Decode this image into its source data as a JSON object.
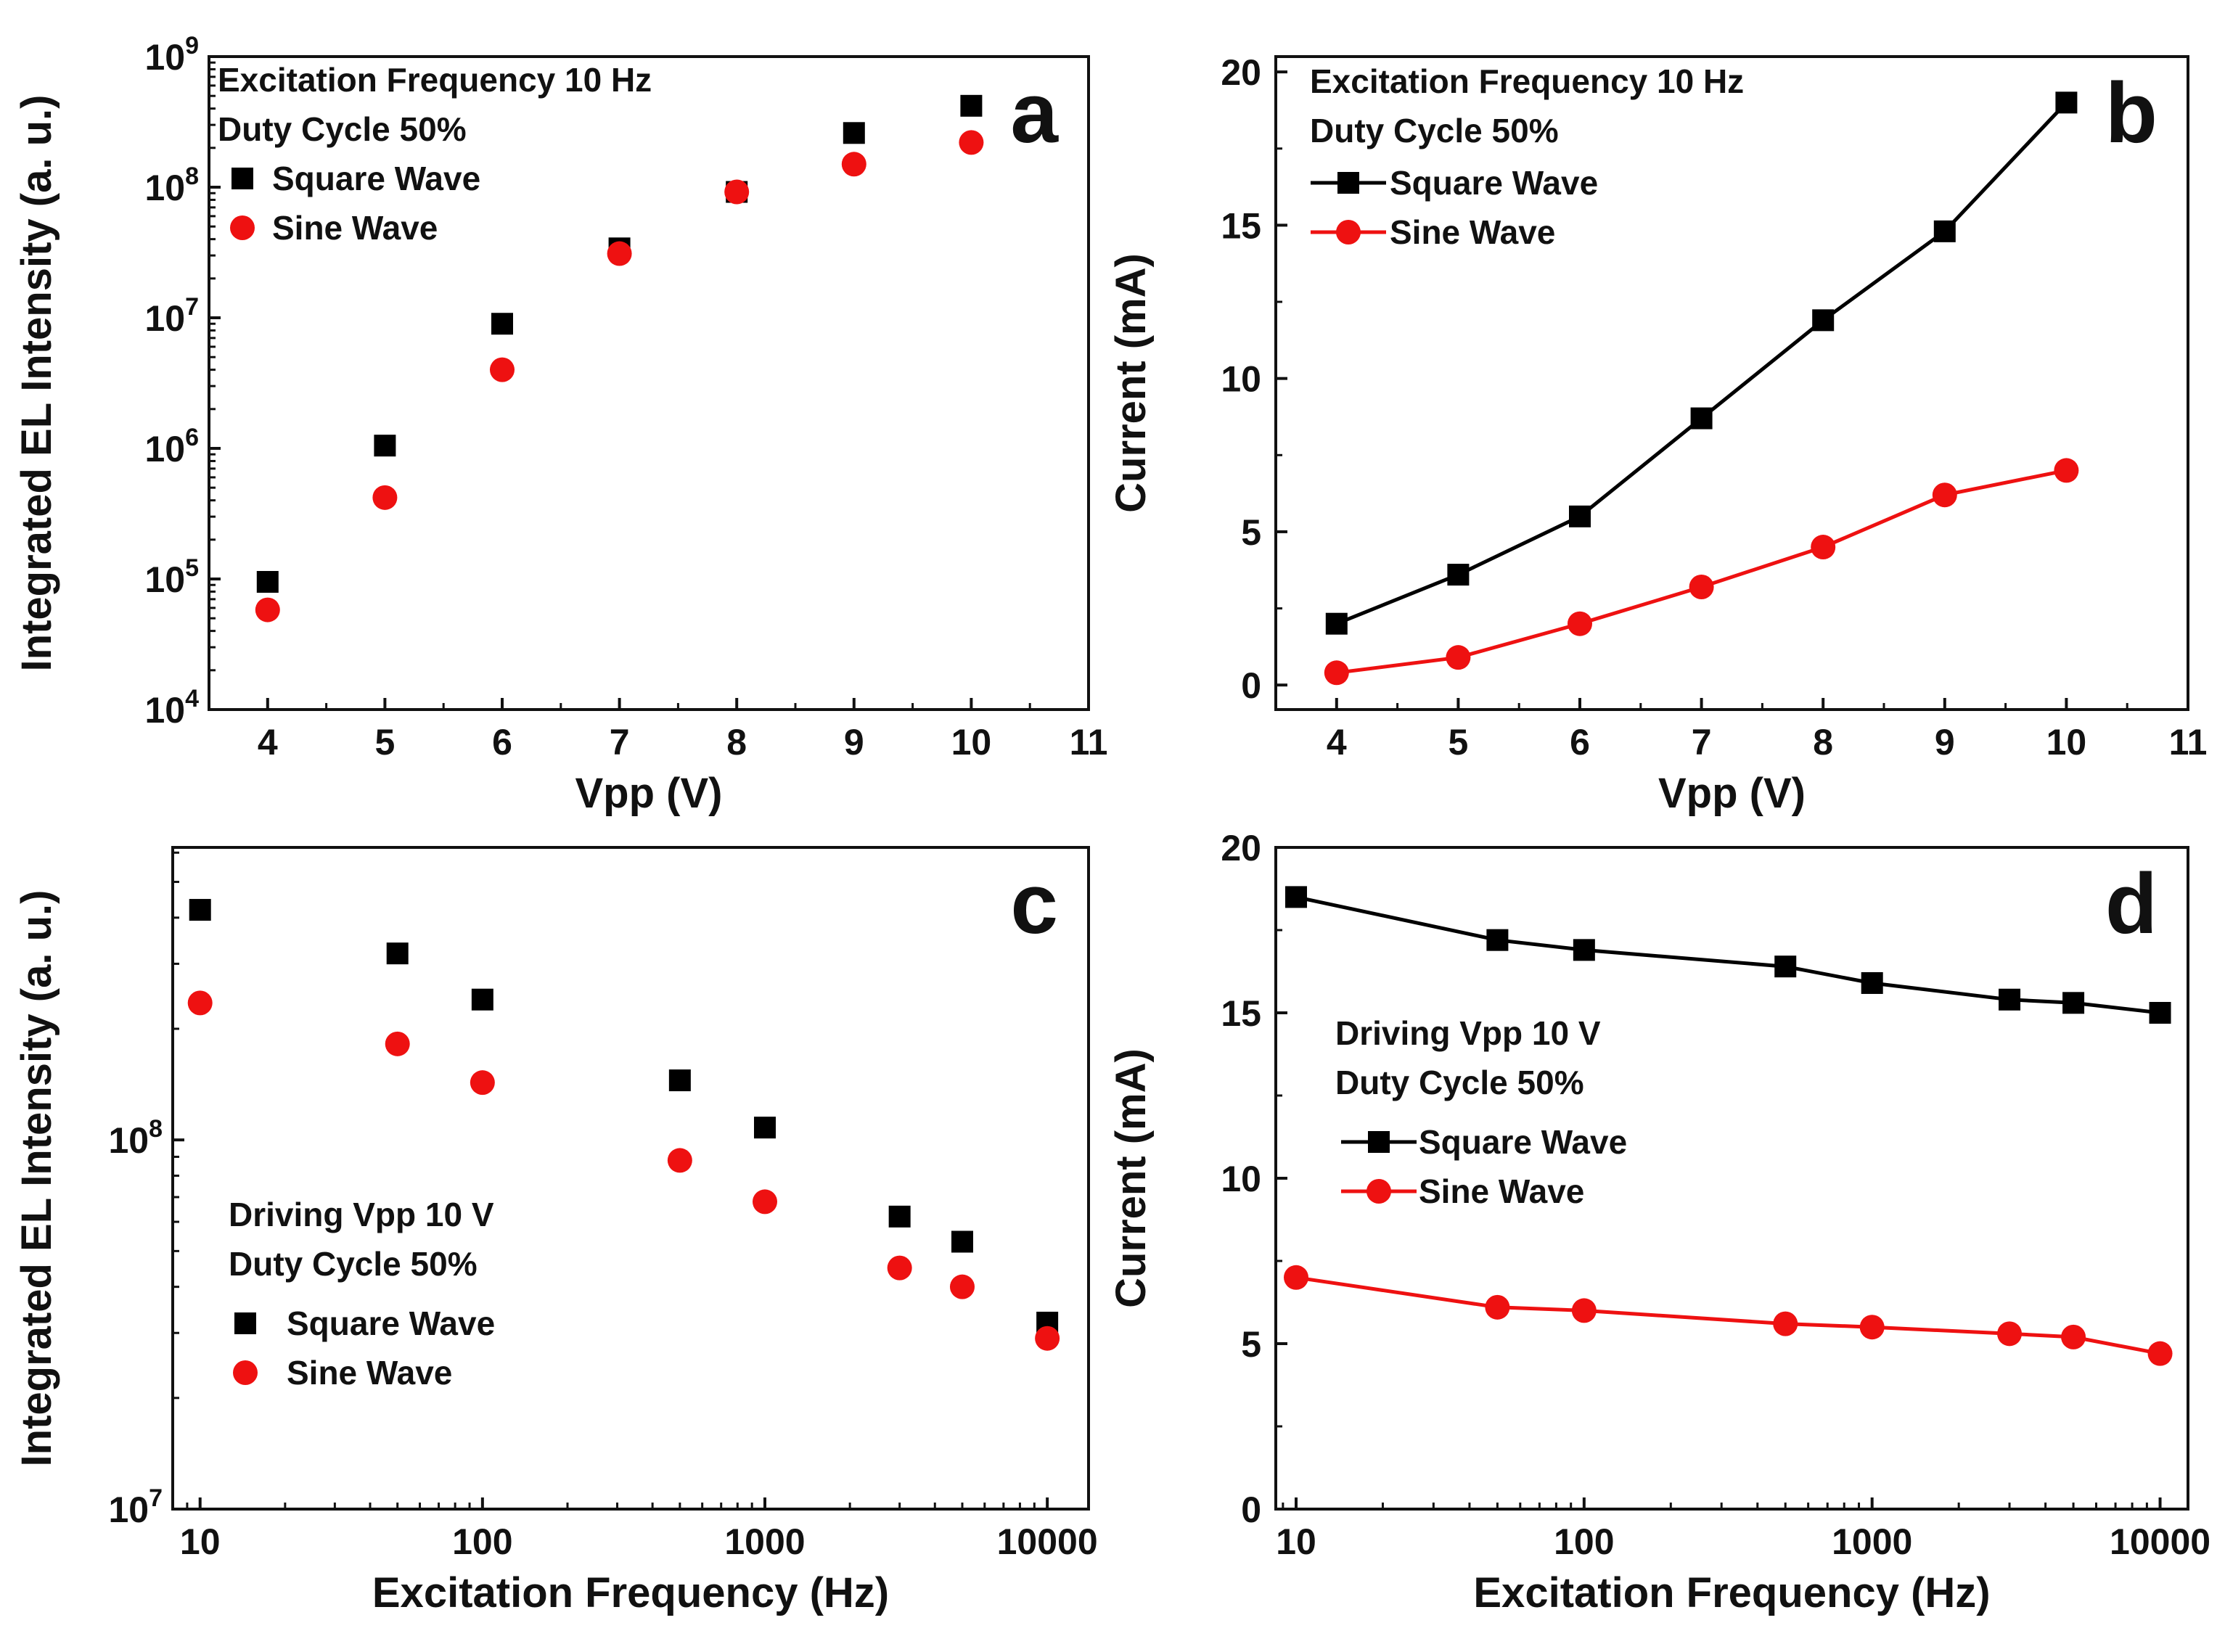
{
  "colors": {
    "square": "#000000",
    "sine": "#ee1111",
    "axis": "#111111"
  },
  "chart_data": [
    {
      "id": "a",
      "type": "scatter",
      "panel_label": "a",
      "title": "",
      "xlabel": "Vpp (V)",
      "ylabel": "Integrated EL Intensity (a. u.)",
      "xscale": "linear",
      "yscale": "log",
      "xlim": [
        3.5,
        11
      ],
      "ylim": [
        10000,
        1000000000
      ],
      "xticks": [
        4,
        5,
        6,
        7,
        8,
        9,
        10,
        11
      ],
      "xtick_labels": [
        "4",
        "5",
        "6",
        "7",
        "8",
        "9",
        "10",
        "11"
      ],
      "yticks": [
        10000,
        100000,
        1000000,
        10000000,
        100000000,
        1000000000
      ],
      "ytick_labels": [
        [
          "10",
          "4"
        ],
        [
          "10",
          "5"
        ],
        [
          "10",
          "6"
        ],
        [
          "10",
          "7"
        ],
        [
          "10",
          "8"
        ],
        [
          "10",
          "9"
        ]
      ],
      "annotation_lines": [
        "Excitation Frequency 10 Hz",
        "Duty Cycle 50%"
      ],
      "legend_position": "top-left",
      "series": [
        {
          "name": "Square Wave",
          "marker": "square",
          "connected": false,
          "x": [
            4,
            5,
            6,
            7,
            8,
            9,
            10
          ],
          "y": [
            95000,
            1050000,
            9000000,
            34000000,
            92000000,
            260000000,
            420000000
          ]
        },
        {
          "name": "Sine Wave",
          "marker": "circle",
          "connected": false,
          "x": [
            4,
            5,
            6,
            7,
            8,
            9,
            10
          ],
          "y": [
            58000,
            420000,
            4000000,
            31000000,
            92000000,
            150000000,
            220000000
          ]
        }
      ]
    },
    {
      "id": "b",
      "type": "line",
      "panel_label": "b",
      "title": "",
      "xlabel": "Vpp (V)",
      "ylabel": "Current (mA)",
      "xscale": "linear",
      "yscale": "linear",
      "xlim": [
        3.5,
        11
      ],
      "ylim": [
        -0.8,
        20.5
      ],
      "xticks": [
        4,
        5,
        6,
        7,
        8,
        9,
        10,
        11
      ],
      "xtick_labels": [
        "4",
        "5",
        "6",
        "7",
        "8",
        "9",
        "10",
        "11"
      ],
      "yticks": [
        0,
        5,
        10,
        15,
        20
      ],
      "ytick_labels": [
        "0",
        "5",
        "10",
        "15",
        "20"
      ],
      "annotation_lines": [
        "Excitation Frequency 10 Hz",
        "Duty Cycle 50%"
      ],
      "legend_position": "top-left",
      "series": [
        {
          "name": "Square Wave",
          "marker": "square",
          "connected": true,
          "x": [
            4,
            5,
            6,
            7,
            8,
            9,
            10
          ],
          "y": [
            2.0,
            3.6,
            5.5,
            8.7,
            11.9,
            14.8,
            19.0
          ]
        },
        {
          "name": "Sine Wave",
          "marker": "circle",
          "connected": true,
          "x": [
            4,
            5,
            6,
            7,
            8,
            9,
            10
          ],
          "y": [
            0.4,
            0.9,
            2.0,
            3.2,
            4.5,
            6.2,
            7.0
          ]
        }
      ]
    },
    {
      "id": "c",
      "type": "scatter",
      "panel_label": "c",
      "title": "",
      "xlabel": "Excitation Frequency (Hz)",
      "ylabel": "Integrated EL Intensity (a. u.)",
      "xscale": "log",
      "yscale": "log",
      "xlim": [
        8,
        14000
      ],
      "ylim": [
        10000000,
        620000000
      ],
      "xticks": [
        10,
        100,
        1000,
        10000
      ],
      "xtick_labels": [
        "10",
        "100",
        "1000",
        "10000"
      ],
      "yticks": [
        10000000,
        100000000
      ],
      "ytick_labels": [
        [
          "10",
          "7"
        ],
        [
          "10",
          "8"
        ]
      ],
      "annotation_lines": [
        "Driving Vpp 10 V",
        "Duty Cycle 50%"
      ],
      "legend_position": "bottom-left",
      "series": [
        {
          "name": "Square Wave",
          "marker": "square",
          "connected": false,
          "x": [
            10,
            50,
            100,
            500,
            1000,
            3000,
            5000,
            10000
          ],
          "y": [
            420000000,
            320000000,
            240000000,
            145000000,
            108000000,
            62000000,
            53000000,
            32000000
          ]
        },
        {
          "name": "Sine Wave",
          "marker": "circle",
          "connected": false,
          "x": [
            10,
            50,
            100,
            500,
            1000,
            3000,
            5000,
            10000
          ],
          "y": [
            235000000,
            182000000,
            143000000,
            88000000,
            68000000,
            45000000,
            40000000,
            29000000
          ]
        }
      ]
    },
    {
      "id": "d",
      "type": "line",
      "panel_label": "d",
      "title": "",
      "xlabel": "Excitation Frequency (Hz)",
      "ylabel": "Current (mA)",
      "xscale": "log",
      "yscale": "linear",
      "xlim": [
        8.5,
        12500
      ],
      "ylim": [
        0,
        20
      ],
      "xticks": [
        10,
        100,
        1000,
        10000
      ],
      "xtick_labels": [
        "10",
        "100",
        "1000",
        "10000"
      ],
      "yticks": [
        0,
        5,
        10,
        15,
        20
      ],
      "ytick_labels": [
        "0",
        "5",
        "10",
        "15",
        "20"
      ],
      "annotation_lines": [
        "Driving Vpp 10 V",
        "Duty Cycle 50%"
      ],
      "legend_position": "center-left",
      "series": [
        {
          "name": "Square Wave",
          "marker": "square",
          "connected": true,
          "x": [
            10,
            50,
            100,
            500,
            1000,
            3000,
            5000,
            10000
          ],
          "y": [
            18.5,
            17.2,
            16.9,
            16.4,
            15.9,
            15.4,
            15.3,
            15.0
          ]
        },
        {
          "name": "Sine Wave",
          "marker": "circle",
          "connected": true,
          "x": [
            10,
            50,
            100,
            500,
            1000,
            3000,
            5000,
            10000
          ],
          "y": [
            7.0,
            6.1,
            6.0,
            5.6,
            5.5,
            5.3,
            5.2,
            4.7
          ]
        }
      ]
    }
  ]
}
